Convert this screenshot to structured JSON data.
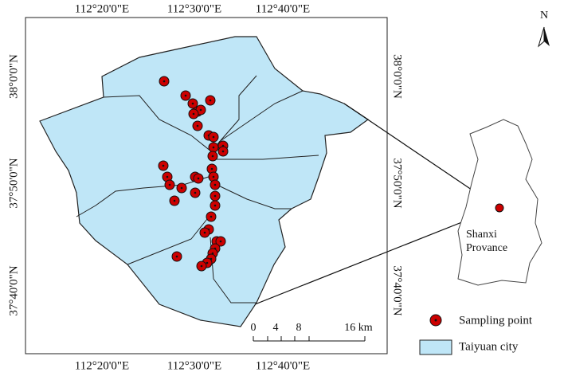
{
  "map": {
    "top_labels": [
      "112°20'0\"E",
      "112°30'0\"E",
      "112°40'0\"E"
    ],
    "bottom_labels": [
      "112°20'0\"E",
      "112°30'0\"E",
      "112°40'0\"E"
    ],
    "left_labels": [
      "38°0'0\"N",
      "37°50'0\"N",
      "37°40'0\"N"
    ],
    "right_labels": [
      "38°0'0\"N",
      "37°50'0\"N",
      "37°40'0\"N"
    ],
    "north": "N",
    "scale_bar": [
      "0",
      "4",
      "8",
      "16 km"
    ],
    "inset_label": [
      "Shanxi",
      "Provance"
    ],
    "legend": [
      "Sampling point",
      "Taiyuan city"
    ]
  }
}
